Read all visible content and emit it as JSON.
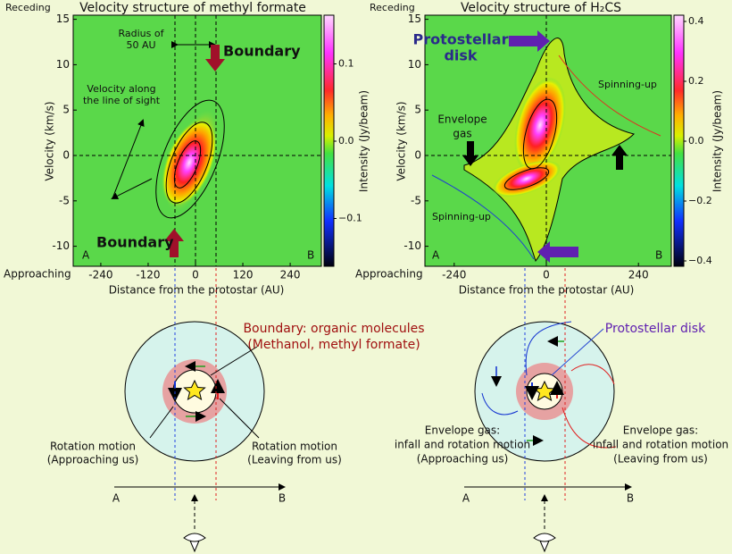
{
  "left_panel": {
    "title": "Velocity structure of methyl formate",
    "top_label": "Receding",
    "bottom_label": "Approaching",
    "y_axis_label": "Velocity (km/s)",
    "x_axis_label": "Distance from the protostar (AU)",
    "colorbar_label": "Intensity (Jy/beam)",
    "yticks": [
      15,
      10,
      5,
      0,
      -5,
      -10
    ],
    "xticks": [
      -240,
      -120,
      0,
      120,
      240
    ],
    "colorbar_ticks": [
      {
        "value": 0.1,
        "label": "0.1"
      },
      {
        "value": 0,
        "label": "0.0"
      },
      {
        "value": -0.1,
        "label": "−0.1"
      }
    ],
    "annotations": {
      "radius": [
        "Radius of",
        "50 AU"
      ],
      "boundary_top": "Boundary",
      "boundary_bottom": "Boundary",
      "velocity": [
        "Velocity along",
        "the line of sight"
      ],
      "corner_a": "A",
      "corner_b": "B"
    }
  },
  "right_panel": {
    "title": "Velocity structure of H₂CS",
    "top_label": "Receding",
    "bottom_label": "Approaching",
    "y_axis_label": "Velocity (km/s)",
    "x_axis_label": "Distance from the protostar (AU)",
    "colorbar_label": "Intensity (Jy/beam)",
    "yticks": [
      15,
      10,
      5,
      0,
      -5,
      -10
    ],
    "xticks": [
      -240,
      0,
      240
    ],
    "colorbar_ticks": [
      {
        "value": 0.4,
        "label": "0.4"
      },
      {
        "value": 0.2,
        "label": "0.2"
      },
      {
        "value": 0,
        "label": "0.0"
      },
      {
        "value": -0.2,
        "label": "−0.2"
      },
      {
        "value": -0.4,
        "label": "−0.4"
      }
    ],
    "annotations": {
      "disk": [
        "Protostellar",
        "disk"
      ],
      "envelope": [
        "Envelope",
        "gas"
      ],
      "spin_top": "Spinning-up",
      "spin_bottom": "Spinning-up",
      "corner_a": "A",
      "corner_b": "B"
    }
  },
  "left_diagram": {
    "boundary": [
      "Boundary: organic molecules",
      "(Methanol, methyl formate)"
    ],
    "left_note": [
      "Rotation motion",
      "(Approaching us)"
    ],
    "right_note": [
      "Rotation motion",
      "(Leaving from us)"
    ],
    "axis_a": "A",
    "axis_b": "B"
  },
  "right_diagram": {
    "disk": "Protostellar disk",
    "left_note": [
      "Envelope gas:",
      "infall and rotation motion",
      "(Approaching us)"
    ],
    "right_note": [
      "Envelope gas:",
      "infall and rotation motion",
      "(Leaving from us)"
    ],
    "axis_a": "A",
    "axis_b": "B"
  }
}
